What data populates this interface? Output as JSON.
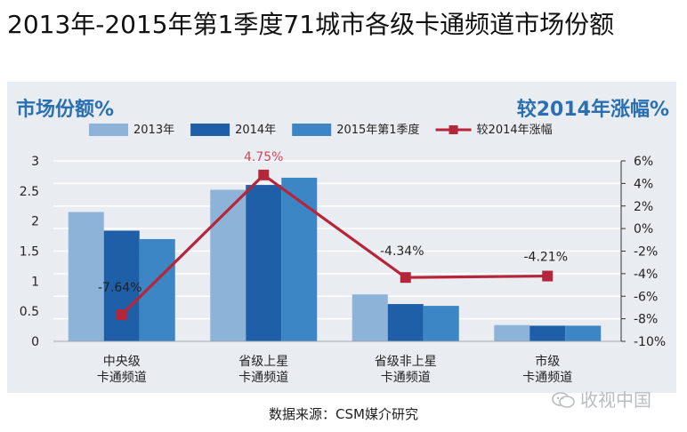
{
  "title": "2013年-2015年第1季度71城市各级卡通频道市场份额",
  "source": "数据来源：CSM媒介研究",
  "watermark": "收视中国",
  "chart_data": {
    "type": "bar",
    "left_axis_title": "市场份额%",
    "right_axis_title": "较2014年涨幅%",
    "categories": [
      [
        "中央级",
        "卡通频道"
      ],
      [
        "省级上星",
        "卡通频道"
      ],
      [
        "省级非上星",
        "卡通频道"
      ],
      [
        "市级",
        "卡通频道"
      ]
    ],
    "series": [
      {
        "name": "2013年",
        "color": "#8db4d8",
        "values": [
          2.15,
          2.52,
          0.78,
          0.27
        ]
      },
      {
        "name": "2014年",
        "color": "#1f5fa8",
        "values": [
          1.84,
          2.6,
          0.62,
          0.26
        ]
      },
      {
        "name": "2015年第1季度",
        "color": "#3d86c6",
        "values": [
          1.7,
          2.72,
          0.59,
          0.26
        ]
      }
    ],
    "line": {
      "name": "较2014年涨幅",
      "color": "#b5263a",
      "values": [
        -7.64,
        4.75,
        -4.34,
        -4.21
      ],
      "labels": [
        "-7.64%",
        "4.75%",
        "-4.34%",
        "-4.21%"
      ],
      "highlight_label_color": "#d0455a"
    },
    "y_left": {
      "min": 0,
      "max": 3,
      "ticks": [
        0,
        0.5,
        1,
        1.5,
        2,
        2.5,
        3
      ],
      "tick_labels": [
        "0",
        "0.5",
        "1",
        "1.5",
        "2",
        "2.5",
        "3"
      ]
    },
    "y_right": {
      "min": -10,
      "max": 6,
      "ticks": [
        -10,
        -8,
        -6,
        -4,
        -2,
        0,
        2,
        4,
        6
      ],
      "tick_labels": [
        "-10%",
        "-8%",
        "-6%",
        "-4%",
        "-2%",
        "0%",
        "2%",
        "4%",
        "6%"
      ]
    },
    "legend_position": "top",
    "grid": true
  }
}
